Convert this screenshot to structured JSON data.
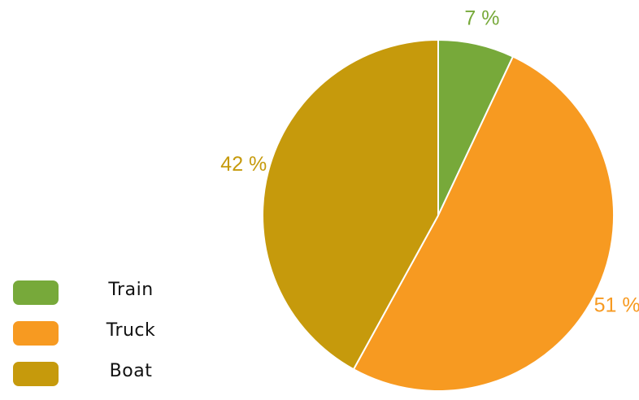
{
  "chart_data": {
    "type": "pie",
    "title": "",
    "categories": [
      "Train",
      "Truck",
      "Boat"
    ],
    "values": [
      7,
      51,
      42
    ],
    "labels": [
      "7 %",
      "51 %",
      "42 %"
    ],
    "colors": [
      "#77a93a",
      "#f79a21",
      "#c69a0c"
    ],
    "start_angle_deg": 0,
    "direction": "clockwise",
    "legend": {
      "placement": "bottom-left",
      "items": [
        {
          "label": "Train",
          "color": "#77a93a"
        },
        {
          "label": "Truck",
          "color": "#f79a21"
        },
        {
          "label": "Boat",
          "color": "#c69a0c"
        }
      ]
    }
  }
}
